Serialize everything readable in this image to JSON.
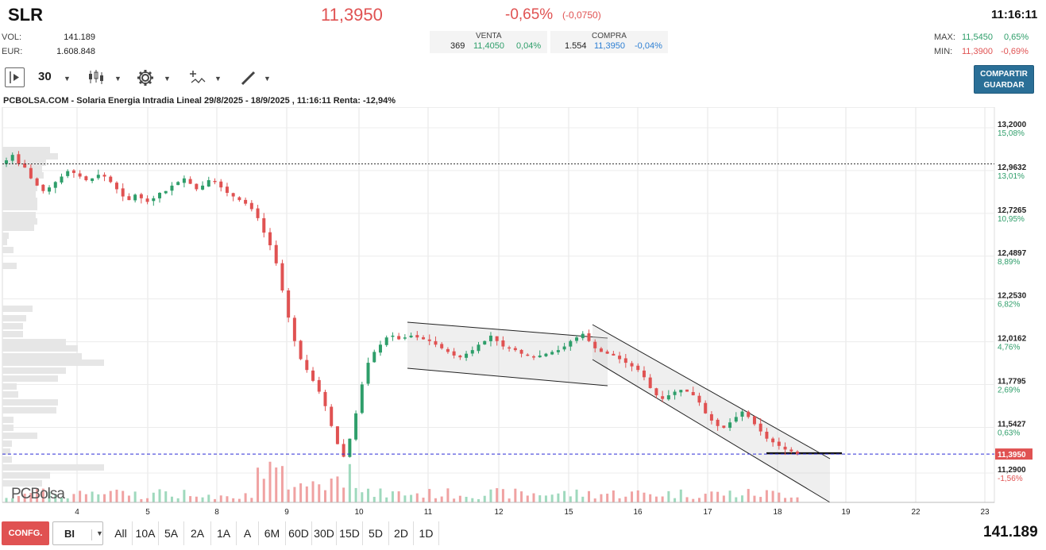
{
  "header": {
    "ticker": "SLR",
    "price": "11,3950",
    "change_pct": "-0,65%",
    "change_abs": "(-0,0750)",
    "time": "11:16:11",
    "vol_label": "VOL:",
    "vol_value": "141.189",
    "eur_label": "EUR:",
    "eur_value": "1.608.848",
    "max_label": "MAX:",
    "max_value": "11,5450",
    "max_pct": "0,65%",
    "min_label": "MIN:",
    "min_value": "11,3900",
    "min_pct": "-0,69%"
  },
  "book": {
    "sell": {
      "label": "VENTA",
      "qty": "369",
      "price": "11,4050",
      "pct": "0,04%"
    },
    "buy": {
      "label": "COMPRA",
      "qty": "1.554",
      "price": "11,3950",
      "pct": "-0,04%"
    }
  },
  "toolbar": {
    "interval_value": "30",
    "share_line1": "COMPARTIR",
    "share_line2": "GUARDAR",
    "icons": [
      "play-panel-icon",
      "candles-icon",
      "gear-icon",
      "indicators-icon",
      "draw-pencil-icon"
    ]
  },
  "chart_title": "PCBOLSA.COM - Solaria Energia Intradia Lineal 29/8/2025 - 18/9/2025 , 11:16:11 Renta: -12,94%",
  "logo_text": "PCBolsa",
  "bottom": {
    "config_label": "CONFG.",
    "mode_value": "BI",
    "ranges": [
      "All",
      "10A",
      "5A",
      "2A",
      "1A",
      "A",
      "6M",
      "60D",
      "30D",
      "15D",
      "5D",
      "2D",
      "1D"
    ],
    "total_volume": "141.189"
  },
  "colors": {
    "up": "#2e9e6a",
    "down": "#e05252",
    "last_line": "#2d2dd6",
    "price_tag": "#e05252",
    "button": "#2a6f97"
  },
  "chart_data": {
    "type": "candlestick",
    "title": "PCBOLSA.COM - Solaria Energia Intradia Lineal 29/8/2025 - 18/9/2025 , 11:16:11 Renta: -12,94%",
    "y_ticks": [
      {
        "value": 13.2,
        "label": "13,2000",
        "pct": "15,08%"
      },
      {
        "value": 12.9632,
        "label": "12,9632",
        "pct": "13,01%"
      },
      {
        "value": 12.7265,
        "label": "12,7265",
        "pct": "10,95%"
      },
      {
        "value": 12.4897,
        "label": "12,4897",
        "pct": "8,89%"
      },
      {
        "value": 12.253,
        "label": "12,2530",
        "pct": "6,82%"
      },
      {
        "value": 12.0162,
        "label": "12,0162",
        "pct": "4,76%"
      },
      {
        "value": 11.7795,
        "label": "11,7795",
        "pct": "2,69%"
      },
      {
        "value": 11.5427,
        "label": "11,5427",
        "pct": "0,63%"
      },
      {
        "value": 11.29,
        "label": "11,2900",
        "pct": "-1,56%"
      }
    ],
    "last_price": {
      "value": 11.395,
      "label": "11,3950"
    },
    "reference_level": 13.0,
    "x_ticks": [
      "4",
      "5",
      "8",
      "9",
      "10",
      "11",
      "12",
      "15",
      "16",
      "17",
      "18",
      "19",
      "22",
      "23"
    ],
    "ylim": [
      11.2,
      13.35
    ],
    "closes": [
      13.02,
      13.05,
      13.0,
      12.98,
      12.92,
      12.88,
      12.85,
      12.87,
      12.9,
      12.93,
      12.96,
      12.95,
      12.93,
      12.91,
      12.92,
      12.94,
      12.93,
      12.9,
      12.86,
      12.82,
      12.8,
      12.83,
      12.81,
      12.79,
      12.81,
      12.84,
      12.85,
      12.88,
      12.9,
      12.92,
      12.89,
      12.86,
      12.88,
      12.91,
      12.9,
      12.87,
      12.84,
      12.82,
      12.8,
      12.78,
      12.75,
      12.7,
      12.62,
      12.55,
      12.45,
      12.3,
      12.15,
      12.02,
      11.92,
      11.86,
      11.8,
      11.74,
      11.66,
      11.55,
      11.45,
      11.38,
      11.48,
      11.62,
      11.78,
      11.9,
      11.96,
      12.0,
      12.04,
      12.05,
      12.03,
      12.04,
      12.05,
      12.04,
      12.03,
      12.02,
      12.0,
      11.98,
      11.96,
      11.94,
      11.93,
      11.95,
      11.97,
      12.0,
      12.02,
      12.05,
      12.02,
      11.99,
      11.98,
      11.97,
      11.95,
      11.94,
      11.93,
      11.94,
      11.95,
      11.96,
      11.97,
      11.99,
      12.02,
      12.04,
      12.06,
      12.02,
      11.98,
      11.96,
      11.95,
      11.94,
      11.92,
      11.9,
      11.88,
      11.86,
      11.82,
      11.76,
      11.72,
      11.7,
      11.72,
      11.74,
      11.75,
      11.74,
      11.72,
      11.68,
      11.62,
      11.58,
      11.55,
      11.54,
      11.57,
      11.6,
      11.63,
      11.6,
      11.56,
      11.52,
      11.48,
      11.46,
      11.44,
      11.42,
      11.41,
      11.395
    ],
    "volume_panel": true
  }
}
